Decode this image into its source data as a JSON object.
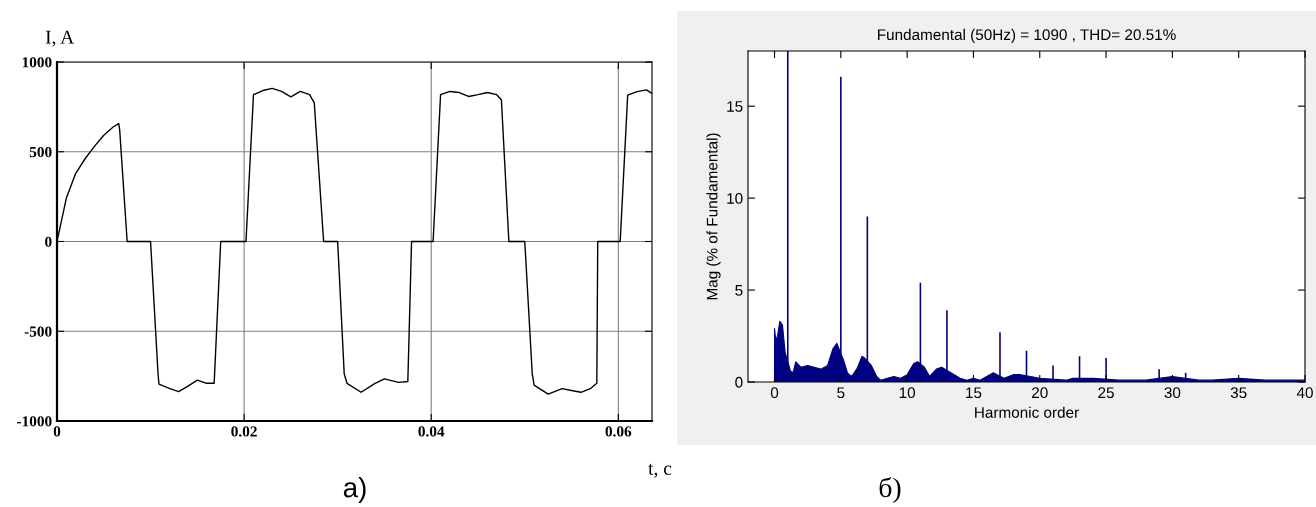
{
  "chart_data": [
    {
      "type": "line",
      "ylabel": "I, A",
      "xlabel": "t, c",
      "annotations": [
        "a)"
      ],
      "xlim": [
        0,
        0.0636
      ],
      "ylim": [
        -1000,
        1000
      ],
      "xticks": [
        0,
        0.02,
        0.04,
        0.06
      ],
      "yticks": [
        -1000,
        -500,
        0,
        500,
        1000
      ],
      "grid": true,
      "marker": "none",
      "line_style": "solid",
      "series": [
        {
          "color": "#000000",
          "x": [
            0,
            0.001,
            0.002,
            0.003,
            0.004,
            0.005,
            0.006,
            0.0066,
            0.0067,
            0.0075,
            0.01,
            0.0108,
            0.0109,
            0.012,
            0.013,
            0.014,
            0.015,
            0.016,
            0.0168,
            0.0175,
            0.02,
            0.0202,
            0.021,
            0.022,
            0.023,
            0.024,
            0.025,
            0.026,
            0.027,
            0.0275,
            0.0285,
            0.03,
            0.0307,
            0.031,
            0.0325,
            0.034,
            0.035,
            0.0365,
            0.0375,
            0.0379,
            0.04,
            0.0402,
            0.041,
            0.042,
            0.043,
            0.044,
            0.045,
            0.046,
            0.047,
            0.0475,
            0.0483,
            0.05,
            0.0508,
            0.051,
            0.0525,
            0.054,
            0.055,
            0.056,
            0.057,
            0.0577,
            0.0578,
            0.06,
            0.0602,
            0.061,
            0.062,
            0.063,
            0.0636
          ],
          "values": [
            0,
            242,
            380,
            461,
            530,
            592,
            638,
            657,
            622,
            0,
            0,
            -737,
            -795,
            -818,
            -836,
            -806,
            -772,
            -790,
            -790,
            0,
            0,
            0,
            818,
            841,
            853,
            836,
            806,
            836,
            818,
            772,
            0,
            0,
            -737,
            -790,
            -840,
            -790,
            -765,
            -785,
            -780,
            0,
            0,
            0,
            818,
            836,
            830,
            808,
            818,
            830,
            818,
            790,
            0,
            0,
            -737,
            -800,
            -850,
            -820,
            -830,
            -840,
            -820,
            -790,
            0,
            0,
            0,
            815,
            835,
            845,
            825
          ]
        }
      ]
    },
    {
      "type": "bar",
      "title": "Fundamental (50Hz) = 1090 , THD= 20.51%",
      "xlabel": "Harmonic order",
      "ylabel": "Mag (% of Fundamental)",
      "annotations": [
        "б)"
      ],
      "xlim": [
        -2,
        40
      ],
      "ylim": [
        0,
        18
      ],
      "xticks": [
        0,
        5,
        10,
        15,
        20,
        25,
        30,
        35,
        40
      ],
      "yticks": [
        0,
        5,
        10,
        15
      ],
      "grid": false,
      "series": [
        {
          "type": "area",
          "color": "#000080",
          "x": [
            0,
            0.1,
            0.25,
            0.4,
            0.6,
            0.8,
            1.2,
            1.4,
            1.6,
            2,
            2.5,
            3,
            3.5,
            4,
            4.4,
            4.7,
            5.2,
            5.5,
            5.8,
            6.2,
            6.6,
            6.8,
            7.3,
            7.7,
            8,
            8.5,
            9,
            9.5,
            10,
            10.5,
            10.8,
            11.3,
            11.7,
            12.2,
            12.6,
            13.3,
            14,
            14.5,
            15,
            15.5,
            16,
            16.5,
            17.3,
            18,
            18.5,
            19.3,
            20,
            22,
            22.5,
            24,
            26,
            27,
            28,
            30,
            32,
            33,
            35,
            37,
            39,
            40
          ],
          "values": [
            2.9,
            2.2,
            2.6,
            3.3,
            3.1,
            1.6,
            0.6,
            0.5,
            1.1,
            0.8,
            0.9,
            0.8,
            0.7,
            0.9,
            1.8,
            2.1,
            1.2,
            0.5,
            0.3,
            0.7,
            1.4,
            1.3,
            0.9,
            0.3,
            0.1,
            0.2,
            0.3,
            0.2,
            0.4,
            1.0,
            1.1,
            0.8,
            0.3,
            0.7,
            0.8,
            0.5,
            0.2,
            0.1,
            0.2,
            0.1,
            0.3,
            0.5,
            0.2,
            0.4,
            0.4,
            0.3,
            0.2,
            0.1,
            0.2,
            0.2,
            0.1,
            0.1,
            0.1,
            0.3,
            0.1,
            0.1,
            0.2,
            0.1,
            0.1,
            0.1
          ]
        },
        {
          "type": "bar",
          "color": "#000080",
          "x": [
            1,
            5,
            7,
            11,
            13,
            17,
            19,
            21,
            23,
            25,
            29,
            31
          ],
          "values": [
            18,
            16.6,
            9.0,
            5.4,
            3.9,
            2.7,
            1.7,
            0.9,
            1.4,
            1.3,
            0.7,
            0.5
          ]
        }
      ]
    }
  ]
}
